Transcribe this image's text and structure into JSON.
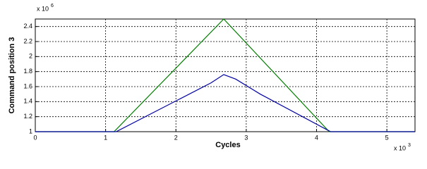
{
  "chart_data": {
    "type": "line",
    "y_label": "Command position 3",
    "x_label": "Cycles",
    "y_exponent": {
      "base": "x 10",
      "exponent": "6"
    },
    "x_exponent": {
      "base": "x 10",
      "exponent": "3"
    },
    "xlim": [
      0,
      5.4
    ],
    "xticks": [
      0,
      1,
      2,
      3,
      4,
      5
    ],
    "ylim": [
      1,
      2.5
    ],
    "yticks": [
      1,
      1.2,
      1.4,
      1.6,
      1.8,
      2,
      2.2,
      2.4
    ],
    "grid": true,
    "series": [
      {
        "color": "#007f00",
        "x": [
          0,
          1.12,
          2.68,
          4.18,
          5.4
        ],
        "values": [
          1,
          1,
          2.5,
          1,
          1
        ]
      },
      {
        "color": "#0000a0",
        "x": [
          0,
          1.15,
          2.5,
          2.68,
          2.85,
          3.2,
          4.2,
          5.4
        ],
        "values": [
          1,
          1,
          1.65,
          1.76,
          1.7,
          1.5,
          1,
          1
        ]
      }
    ]
  }
}
